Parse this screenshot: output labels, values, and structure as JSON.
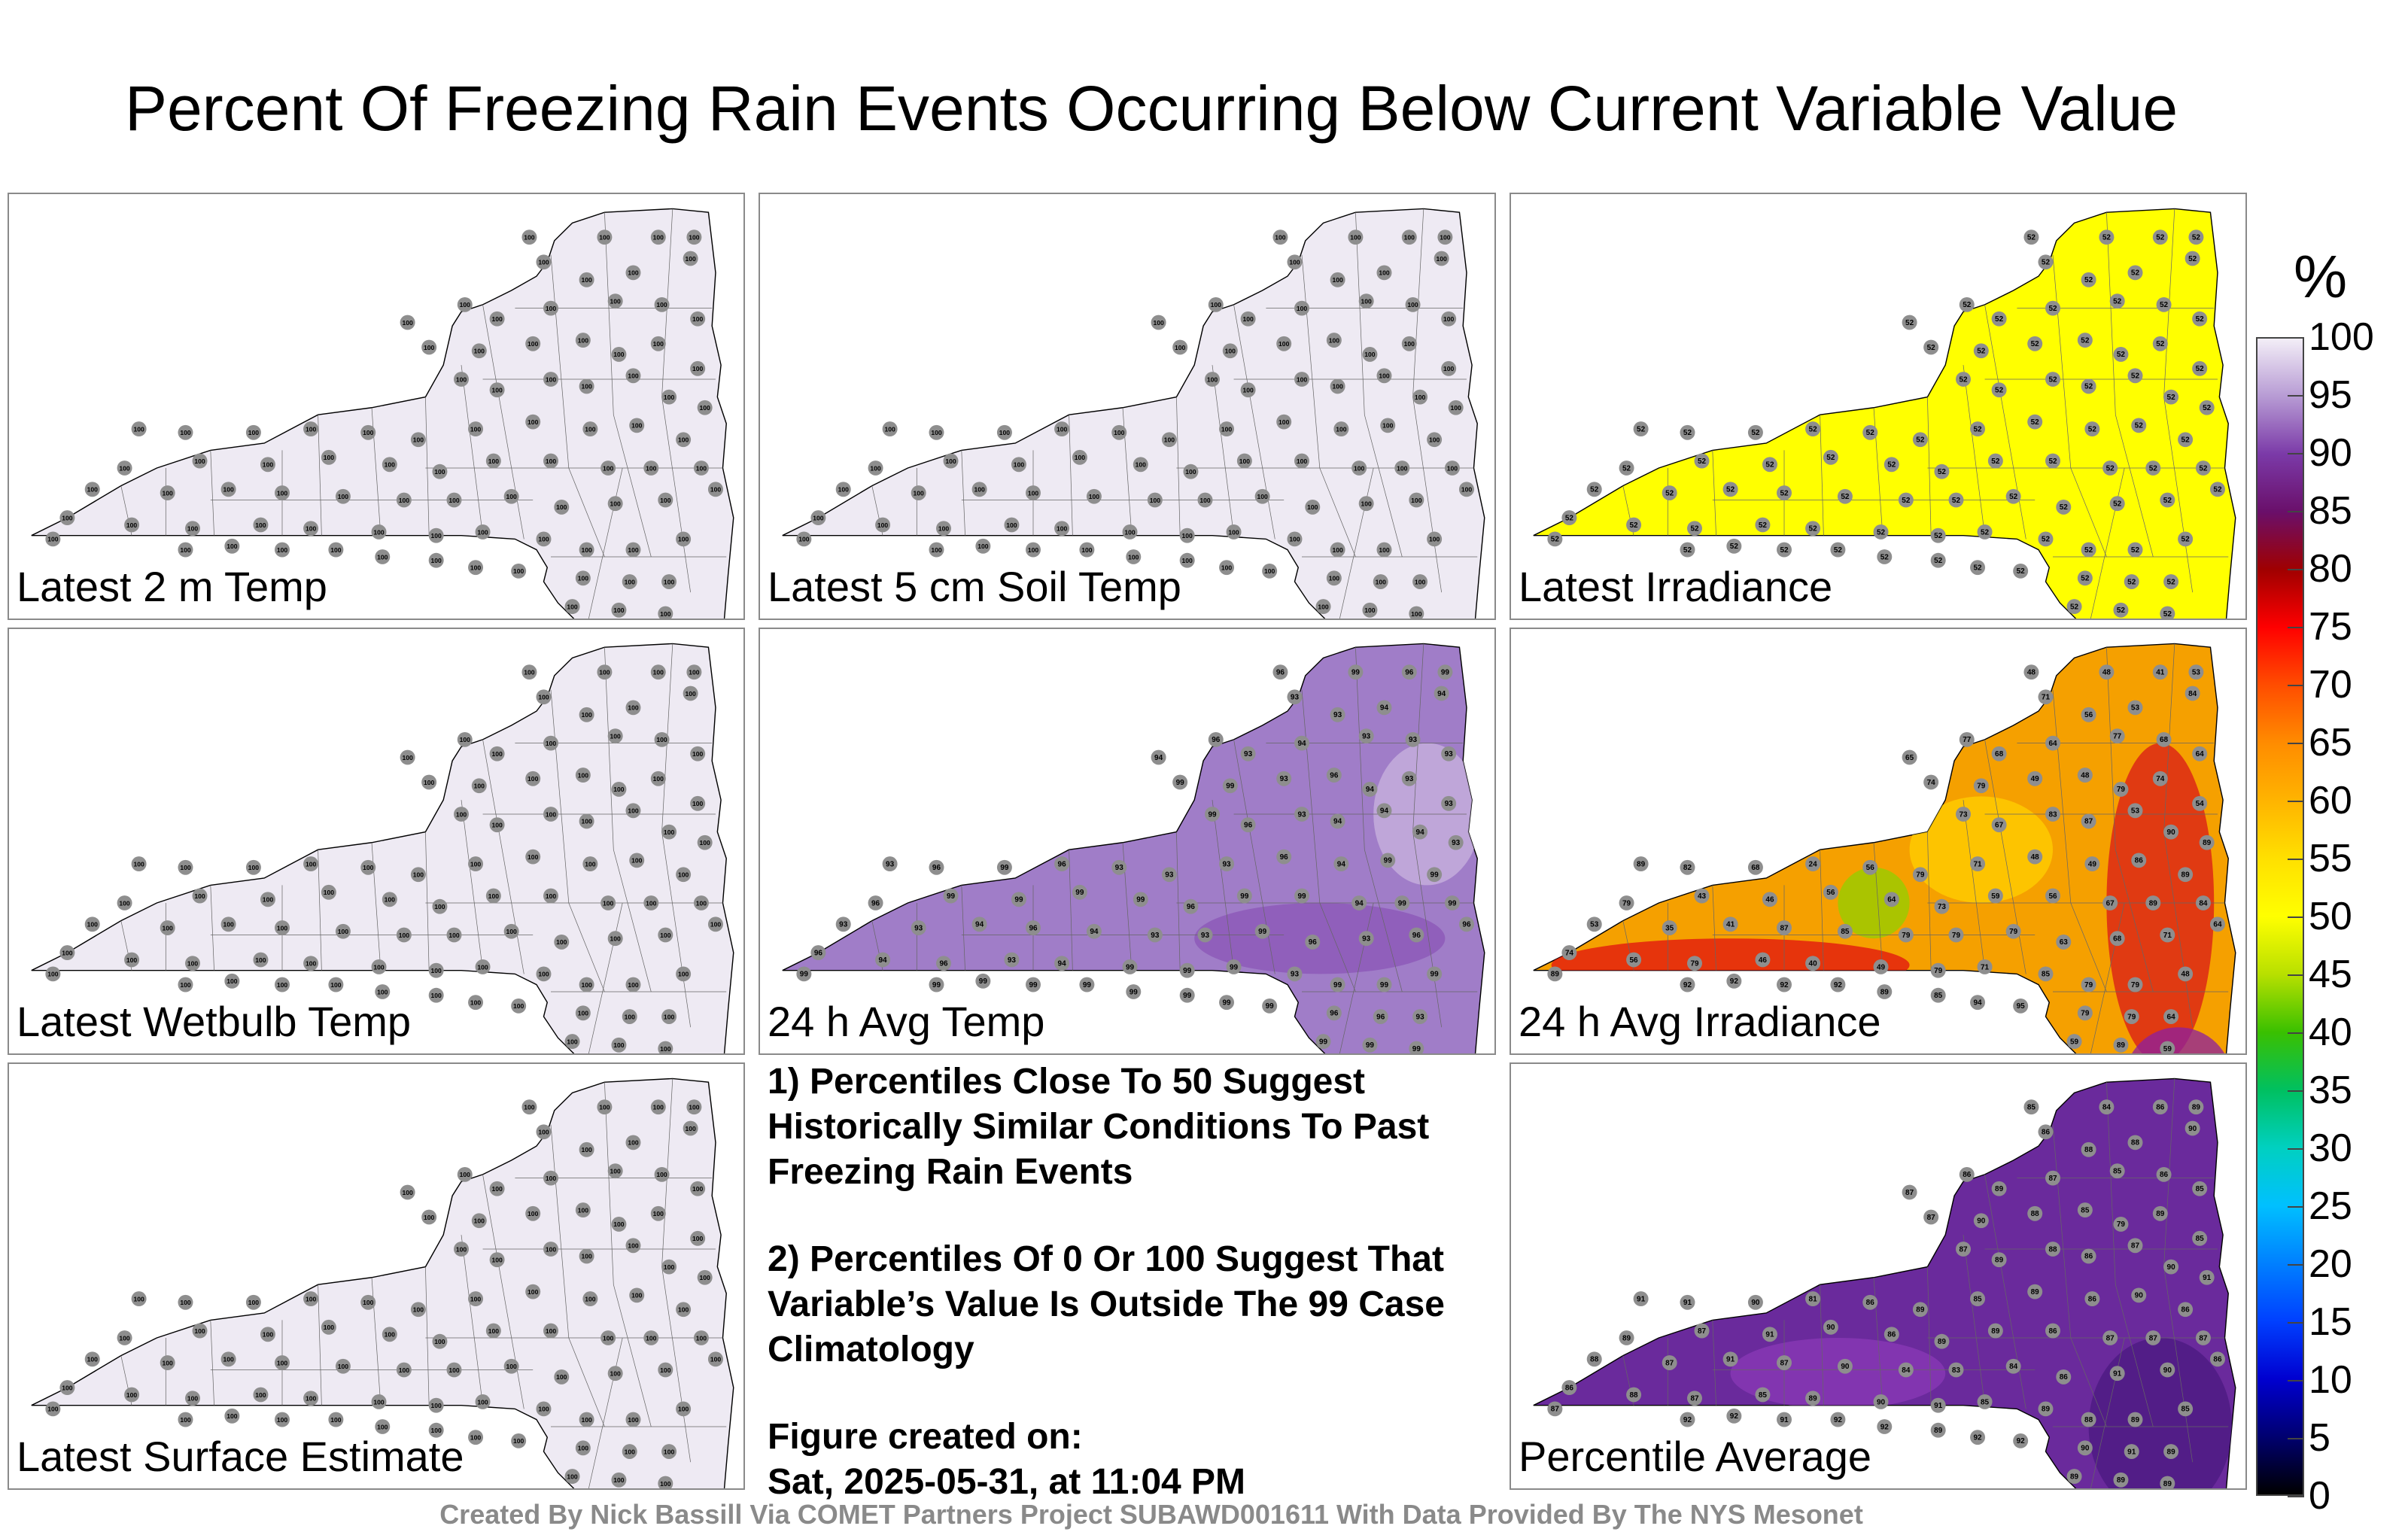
{
  "title": "Percent Of Freezing Rain Events Occurring Below Current Variable Value",
  "credit": "Created By Nick Bassill Via COMET Partners Project SUBAWD001611 With Data Provided By The NYS Mesonet",
  "colorbar": {
    "unit": "%",
    "ticks": [
      "100",
      "95",
      "90",
      "85",
      "80",
      "75",
      "70",
      "65",
      "60",
      "55",
      "50",
      "45",
      "40",
      "35",
      "30",
      "25",
      "20",
      "15",
      "10",
      "5",
      "0"
    ]
  },
  "panels": [
    {
      "label": "Latest 2 m Temp",
      "fill": "#eeeaf3",
      "default_value": "100",
      "values": []
    },
    {
      "label": "Latest 5 cm Soil Temp",
      "fill": "#eeeaf3",
      "default_value": "100",
      "values": []
    },
    {
      "label": "Latest Irradiance",
      "fill": "#ffff00",
      "default_value": "52",
      "values": []
    },
    {
      "label": "Latest Wetbulb Temp",
      "fill": "#eeeaf3",
      "default_value": "100",
      "values": []
    },
    {
      "label": "24 h Avg Temp",
      "fill": "#a07dc8",
      "default_value": "93",
      "values": [
        "96",
        "99",
        "96",
        "99",
        "93",
        "94",
        "93",
        "94",
        "96",
        "94",
        "93",
        "94",
        "93",
        "93",
        "93",
        "99",
        "99",
        "93",
        "96",
        "94",
        "93",
        "93",
        "99",
        "96",
        "93",
        "94",
        "94",
        "94",
        "93",
        "93",
        "96",
        "99",
        "96",
        "93",
        "93",
        "93",
        "96",
        "94",
        "99",
        "99",
        "96",
        "99",
        "99",
        "99",
        "99",
        "96",
        "99",
        "99",
        "94",
        "99",
        "99",
        "93",
        "93",
        "94",
        "96",
        "94",
        "93",
        "93",
        "99",
        "96",
        "93",
        "96",
        "96",
        "96",
        "94",
        "96",
        "93",
        "94",
        "99",
        "99",
        "99",
        "93",
        "99",
        "99",
        "99",
        "99",
        "96",
        "96",
        "93",
        "99",
        "99",
        "99",
        "99",
        "99",
        "99",
        "96",
        "93",
        "99",
        "99",
        "99",
        "99",
        "99",
        "99",
        "99",
        "99",
        "99",
        "100",
        "99",
        "99",
        "99",
        "99",
        "99",
        "99",
        "99",
        "99",
        "99",
        "99",
        "99"
      ]
    },
    {
      "label": "24 h Avg Irradiance",
      "fill": "#f5a000",
      "default_value": "79",
      "values": [
        "48",
        "48",
        "41",
        "53",
        "71",
        "84",
        "56",
        "53",
        "77",
        "65",
        "68",
        "64",
        "77",
        "68",
        "64",
        "74",
        "79",
        "49",
        "48",
        "79",
        "74",
        "54",
        "73",
        "67",
        "83",
        "87",
        "53",
        "90",
        "89",
        "89",
        "82",
        "68",
        "24",
        "56",
        "79",
        "71",
        "48",
        "49",
        "86",
        "89",
        "79",
        "43",
        "46",
        "56",
        "64",
        "73",
        "59",
        "56",
        "67",
        "89",
        "84",
        "53",
        "35",
        "41",
        "87",
        "85",
        "79",
        "79",
        "79",
        "63",
        "68",
        "71",
        "64",
        "74",
        "56",
        "79",
        "46",
        "40",
        "49",
        "79",
        "71",
        "85",
        "79",
        "79",
        "48",
        "89",
        "79",
        "79",
        "64",
        "59",
        "89",
        "59",
        "48",
        "71",
        "90",
        "91",
        "89",
        "82",
        "92",
        "87",
        "92",
        "94",
        "89",
        "92",
        "92",
        "95",
        "92",
        "92",
        "95",
        "94",
        "85",
        "89",
        "92",
        "92",
        "92",
        "92",
        "92",
        "92",
        "92",
        "92"
      ]
    },
    {
      "label": "Latest Surface Estimate",
      "fill": "#eeeaf3",
      "default_value": "100",
      "values": []
    },
    {
      "label": "Percentile Average",
      "fill": "#6a2a9c",
      "default_value": "89",
      "values": [
        "85",
        "84",
        "86",
        "89",
        "86",
        "90",
        "88",
        "88",
        "86",
        "87",
        "89",
        "87",
        "85",
        "86",
        "85",
        "87",
        "90",
        "88",
        "85",
        "79",
        "89",
        "85",
        "87",
        "89",
        "88",
        "86",
        "87",
        "90",
        "91",
        "91",
        "91",
        "90",
        "81",
        "86",
        "89",
        "85",
        "89",
        "86",
        "90",
        "86",
        "89",
        "87",
        "91",
        "90",
        "86",
        "89",
        "89",
        "86",
        "87",
        "87",
        "87",
        "88",
        "87",
        "91",
        "87",
        "90",
        "84",
        "83",
        "84",
        "86",
        "91",
        "90",
        "86",
        "86",
        "88",
        "87",
        "85",
        "89",
        "90",
        "91",
        "85",
        "89",
        "88",
        "89",
        "85",
        "87",
        "90",
        "91",
        "89",
        "89",
        "89",
        "89",
        "85",
        "89",
        "88",
        "91",
        "90",
        "91",
        "91",
        "91",
        "92",
        "91",
        "91",
        "92",
        "92",
        "92",
        "91",
        "91",
        "92",
        "92",
        "89",
        "92",
        "92",
        "91",
        "92",
        "92",
        "92",
        "91",
        "92",
        "92"
      ]
    }
  ],
  "notes": {
    "line1": "1) Percentiles Close To 50 Suggest Historically Similar Conditions To Past Freezing Rain Events",
    "line2": "2) Percentiles Of 0 Or 100 Suggest That Variable’s Value Is Outside The 99 Case Climatology",
    "created_label": "Figure created on:",
    "created_value": "Sat, 2025-05-31, at 11:04 PM"
  }
}
